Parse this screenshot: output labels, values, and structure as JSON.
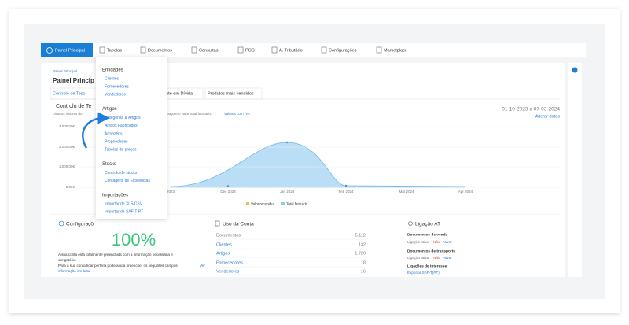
{
  "nav": {
    "items": [
      "Painel Principal",
      "Tabelas",
      "Documentos",
      "Consultas",
      "POS",
      "A. Tributário",
      "Configurações",
      "Marketplace"
    ]
  },
  "dropdown": {
    "groups": [
      {
        "title": "Entidades",
        "items": [
          "Clientes",
          "Fornecedores",
          "Vendedores"
        ]
      },
      {
        "title": "Artigos",
        "items": [
          "Categorias & Artigos",
          "Artigos Fabricados",
          "Armazéns",
          "Propriedades",
          "Tabelas de preços"
        ]
      },
      {
        "title": "Stocks",
        "items": [
          "Controlo de stocks",
          "Contagens de Existências"
        ]
      },
      {
        "title": "Importações",
        "items": [
          "Importar de XLS/CSV",
          "Importar de SAF-T-PT"
        ]
      }
    ]
  },
  "page": {
    "breadcrumb": "Painel Principal",
    "title": "Painel Princip",
    "tabs": [
      "Controlo de Teso",
      "dente em Dívida",
      "Produtos mais vendidos"
    ]
  },
  "treasury": {
    "title": "Controlo de Te",
    "subtitle_left": "Lista os valores do",
    "subtitle_right": "pago e o valor total faturado.",
    "subtitle_link": "Valores com IVA",
    "period": "01-10-2023 a 07-03-2024",
    "change_dates": "Alterar datas",
    "y_labels": [
      "4.000,00€",
      "2.000,00€",
      "1.000,00€",
      "0,00€"
    ],
    "x_labels": [
      "2023",
      "Dec 2023",
      "Jan 2024",
      "Feb 2024",
      "Mar 2024",
      "Apr 2024"
    ],
    "legend": [
      "Valor recebido",
      "Total faturado"
    ]
  },
  "config": {
    "title": "Configuraçõ",
    "percent": "100%",
    "lines": [
      "A sua conta está totalmente preenchida com a informação necessária e",
      "obrigatória.",
      "Para a sua conta ficar perfeita pode ainda preencher os seguintes campos:"
    ],
    "link": [
      "Ver",
      "informação em falta"
    ]
  },
  "usage": {
    "title": "Uso da Conta",
    "rows": [
      [
        "Documentos",
        "5.112"
      ],
      [
        "Clientes",
        "132"
      ],
      [
        "Artigos",
        "1.720"
      ],
      [
        "Fornecedores",
        "18"
      ],
      [
        "Vendedores",
        "16"
      ]
    ]
  },
  "at": {
    "title": "Ligação AT",
    "sales": "Documentos de venda",
    "transport": "Documentos de transporte",
    "status": "Ligação ativa:",
    "no": "Não",
    "activate": "Ativar",
    "interest": "Ligações de Interesse",
    "export": "Exportar SAF-T(PT)"
  }
}
